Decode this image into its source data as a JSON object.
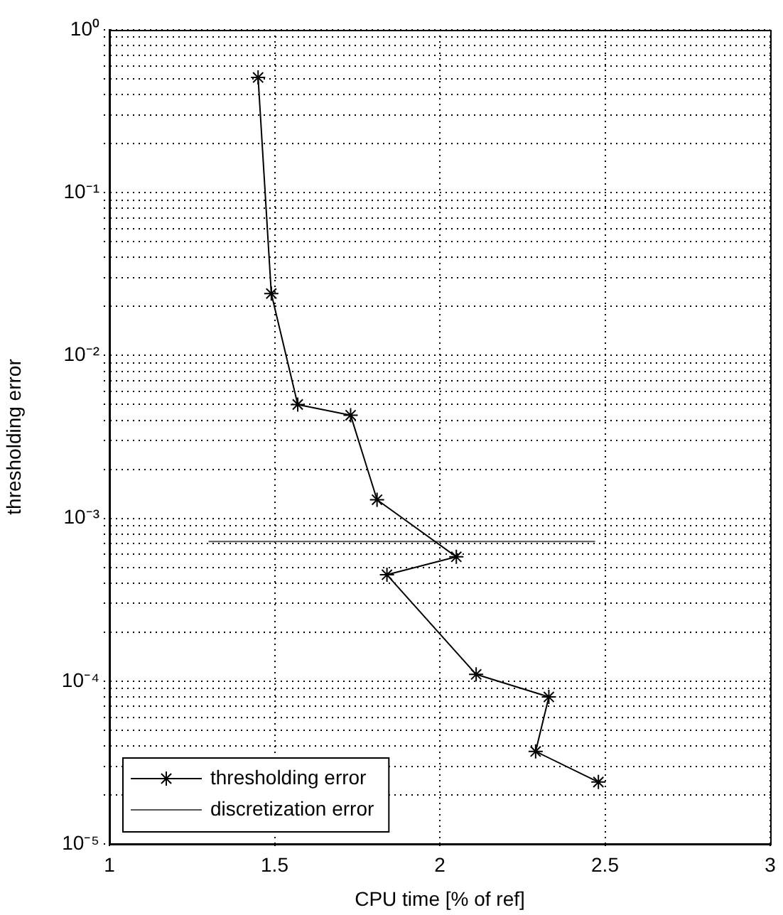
{
  "chart_data": {
    "type": "line",
    "xlabel": "CPU time [% of ref]",
    "ylabel": "thresholding error",
    "log": "y",
    "grid": true,
    "legend": "bottom left",
    "marker": "cross",
    "line_style": "solid",
    "xlim": [
      1,
      3
    ],
    "xticks": [
      1,
      1.5,
      2,
      2.5,
      3
    ],
    "ylim": [
      1e-05,
      1
    ],
    "yticks": [
      {
        "value": 1e-05,
        "label": "10⁻⁵"
      },
      {
        "value": 2e-05,
        "label": null
      },
      {
        "value": 3e-05,
        "label": null
      },
      {
        "value": 4e-05,
        "label": null
      },
      {
        "value": 5e-05,
        "label": null
      },
      {
        "value": 6e-05,
        "label": null
      },
      {
        "value": 7e-05,
        "label": null
      },
      {
        "value": 8e-05,
        "label": null
      },
      {
        "value": 9e-05,
        "label": null
      },
      {
        "value": 0.0001,
        "label": "10⁻⁴"
      },
      {
        "value": 0.0002,
        "label": null
      },
      {
        "value": 0.0003,
        "label": null
      },
      {
        "value": 0.0004,
        "label": null
      },
      {
        "value": 0.0005,
        "label": null
      },
      {
        "value": 0.0006,
        "label": null
      },
      {
        "value": 0.0007,
        "label": null
      },
      {
        "value": 0.0008,
        "label": null
      },
      {
        "value": 0.0009,
        "label": null
      },
      {
        "value": 0.001,
        "label": "10⁻³"
      },
      {
        "value": 0.002,
        "label": null
      },
      {
        "value": 0.003,
        "label": null
      },
      {
        "value": 0.004,
        "label": null
      },
      {
        "value": 0.005,
        "label": null
      },
      {
        "value": 0.006,
        "label": null
      },
      {
        "value": 0.007,
        "label": null
      },
      {
        "value": 0.008,
        "label": null
      },
      {
        "value": 0.009,
        "label": null
      },
      {
        "value": 0.01,
        "label": "10⁻²"
      },
      {
        "value": 0.02,
        "label": null
      },
      {
        "value": 0.03,
        "label": null
      },
      {
        "value": 0.04,
        "label": null
      },
      {
        "value": 0.05,
        "label": null
      },
      {
        "value": 0.06,
        "label": null
      },
      {
        "value": 0.07,
        "label": null
      },
      {
        "value": 0.08,
        "label": null
      },
      {
        "value": 0.09,
        "label": null
      },
      {
        "value": 0.1,
        "label": "10⁻¹"
      },
      {
        "value": 0.2,
        "label": null
      },
      {
        "value": 0.3,
        "label": null
      },
      {
        "value": 0.4,
        "label": null
      },
      {
        "value": 0.5,
        "label": null
      },
      {
        "value": 0.6,
        "label": null
      },
      {
        "value": 0.7,
        "label": null
      },
      {
        "value": 0.8,
        "label": null
      },
      {
        "value": 0.9,
        "label": null
      },
      {
        "value": 1,
        "label": "10⁰"
      }
    ],
    "series": [
      {
        "name": "thresholding error",
        "color": "#000000",
        "x": [
          1.45,
          1.49,
          1.57,
          1.73,
          1.81,
          2.05,
          1.84,
          2.11,
          2.33,
          2.29,
          2.48
        ],
        "values": [
          0.51,
          0.024,
          0.005,
          0.0043,
          0.0013,
          0.00058,
          0.00045,
          0.00011,
          8e-05,
          3.7e-05,
          2.4e-05
        ]
      },
      {
        "name": "discretization error",
        "color": "#555555",
        "marker": "none",
        "x": [
          1.3,
          2.47
        ],
        "values": [
          0.00072,
          0.00072
        ]
      }
    ]
  }
}
